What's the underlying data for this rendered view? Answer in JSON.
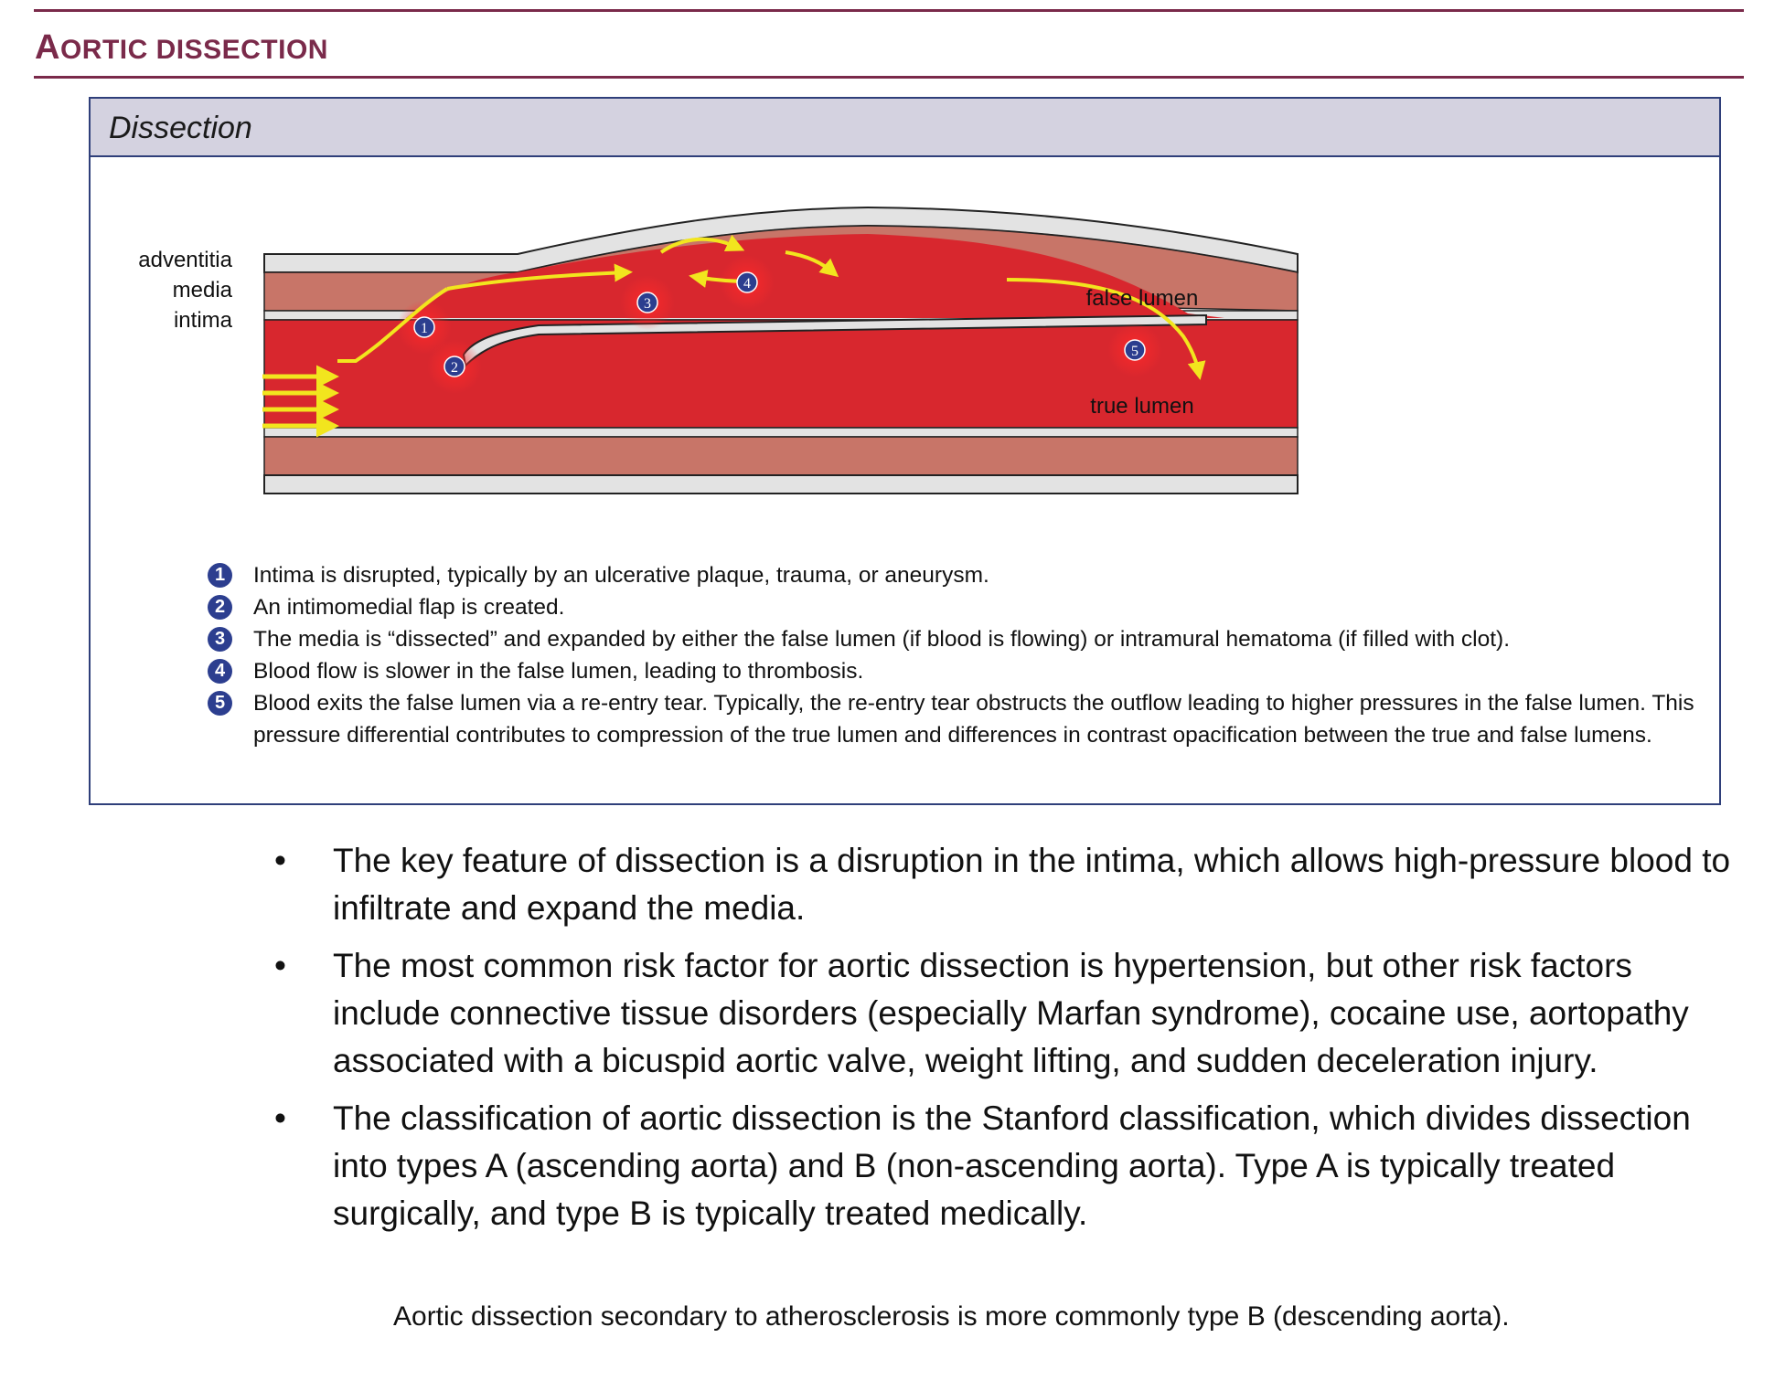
{
  "page": {
    "title_first_letter": "A",
    "title_rest": "ORTIC DISSECTION"
  },
  "panel": {
    "title": "Dissection"
  },
  "diagram": {
    "layer_labels": [
      "adventitia",
      "media",
      "intima"
    ],
    "false_lumen_label": "false lumen",
    "true_lumen_label": "true lumen",
    "markers": [
      "1",
      "2",
      "3",
      "4",
      "5"
    ],
    "colors": {
      "blood": "#d8272e",
      "media": "#c87568",
      "wall": "#e3e3e3",
      "arrow": "#f2e51e",
      "marker": "#2c3e8f"
    }
  },
  "legend": [
    {
      "num": "1",
      "text": "Intima is disrupted, typically by an ulcerative plaque, trauma, or aneurysm."
    },
    {
      "num": "2",
      "text": "An intimomedial flap is created."
    },
    {
      "num": "3",
      "text": "The media is “dissected” and expanded by either the false lumen (if blood is flowing) or intramural hematoma (if filled with clot)."
    },
    {
      "num": "4",
      "text": "Blood flow is slower in the false lumen, leading to thrombosis."
    },
    {
      "num": "5",
      "text": "Blood exits the false lumen via a re-entry tear. Typically, the re-entry tear obstructs the outflow leading to higher pressures in the false lumen. This pressure differential contributes to compression of the true lumen and differences in contrast opacification between the true and false lumens."
    }
  ],
  "bullets": [
    {
      "marker": "•",
      "text": "The key feature of dissection is a disruption in the intima, which allows high-pressure blood to infiltrate and expand the media."
    },
    {
      "marker": "•",
      "text": "The most common risk factor for aortic dissection is hypertension, but other risk factors include connective tissue disorders (especially Marfan syndrome), cocaine use, aortopathy associated with a bicuspid aortic valve, weight lifting, and sudden deceleration injury."
    },
    {
      "marker": "•",
      "text": "The classification of aortic dissection is the Stanford classification, which divides dissection into types A (ascending aorta) and B (non-ascending aorta). Type A is typically treated surgically, and type B is typically treated medically."
    }
  ],
  "note": "Aortic dissection secondary to atherosclerosis is more commonly type B (descending aorta)."
}
